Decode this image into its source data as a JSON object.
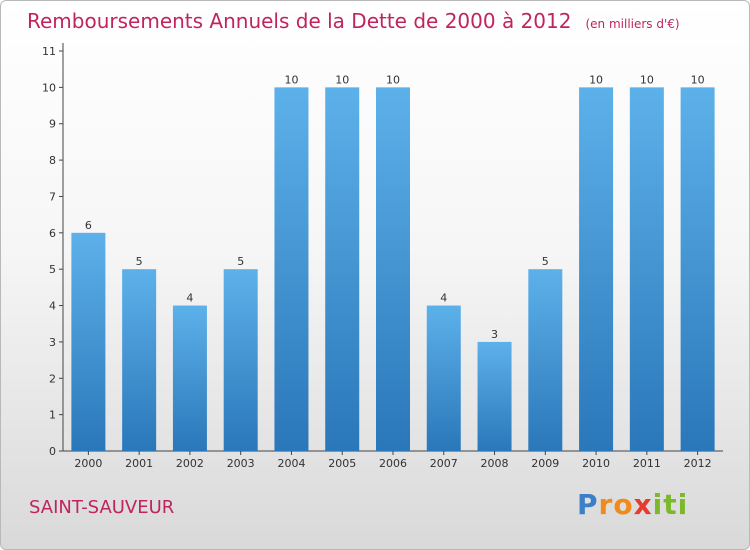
{
  "chart_data": {
    "type": "bar",
    "title": "Remboursements Annuels de la Dette de 2000 à 2012",
    "subtitle": "(en milliers d'€)",
    "categories": [
      "2000",
      "2001",
      "2002",
      "2003",
      "2004",
      "2005",
      "2006",
      "2007",
      "2008",
      "2009",
      "2010",
      "2011",
      "2012"
    ],
    "values": [
      6,
      5,
      4,
      5,
      10,
      10,
      10,
      4,
      3,
      5,
      10,
      10,
      10
    ],
    "data_labels": [
      "6",
      "5",
      "4",
      "5",
      "10",
      "10",
      "10",
      "4",
      "3",
      "5",
      "10",
      "10",
      "10"
    ],
    "yticks": [
      "0",
      "1",
      "2",
      "3",
      "4",
      "5",
      "6",
      "7",
      "8",
      "9",
      "10",
      "11"
    ],
    "ylim": [
      0,
      11
    ],
    "grid": false,
    "bar_color": "#4aa0dd"
  },
  "footer": {
    "town": "SAINT-SAUVEUR"
  },
  "brand": {
    "letters": [
      "P",
      "r",
      "o",
      "x",
      "i",
      "t",
      "i"
    ],
    "colors": [
      "#3b7fc9",
      "#f08a1c",
      "#f08a1c",
      "#e63b2e",
      "#7bb82a",
      "#7bb82a",
      "#7bb82a"
    ]
  },
  "colors": {
    "title": "#c0245f",
    "axis": "#333333"
  }
}
